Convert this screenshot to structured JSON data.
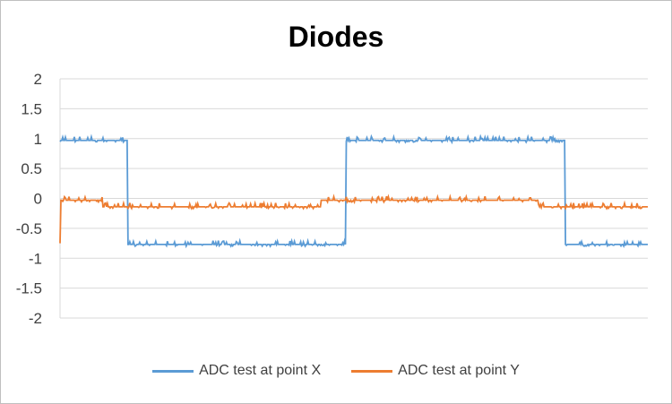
{
  "chart_data": {
    "type": "line",
    "title": "Diodes",
    "xlabel": "",
    "ylabel": "",
    "ylim": [
      -2,
      2
    ],
    "yticks": [
      2,
      1.5,
      1,
      0.5,
      0,
      -0.5,
      -1,
      -1.5,
      -2
    ],
    "ytick_labels": [
      "2",
      "1.5",
      "1",
      "0.5",
      "0",
      "-0.5",
      "-1",
      "-1.5",
      "-2"
    ],
    "x_points": 658,
    "grid": true,
    "legend": "bottom",
    "series": [
      {
        "name": "ADC test at point X",
        "color": "#5b9bd5",
        "segments": [
          {
            "from": 0,
            "to": 76,
            "level": 0.97
          },
          {
            "from": 76,
            "to": 320,
            "level": -0.77
          },
          {
            "from": 320,
            "to": 565,
            "level": 0.97
          },
          {
            "from": 565,
            "to": 658,
            "level": -0.77
          }
        ],
        "start_value": 0.95
      },
      {
        "name": "ADC test at point Y",
        "color": "#ed7d31",
        "segments": [
          {
            "from": 0,
            "to": 48,
            "level": -0.03
          },
          {
            "from": 48,
            "to": 292,
            "level": -0.14
          },
          {
            "from": 292,
            "to": 535,
            "level": -0.03
          },
          {
            "from": 535,
            "to": 658,
            "level": -0.14
          }
        ],
        "start_value": -0.75
      }
    ]
  }
}
